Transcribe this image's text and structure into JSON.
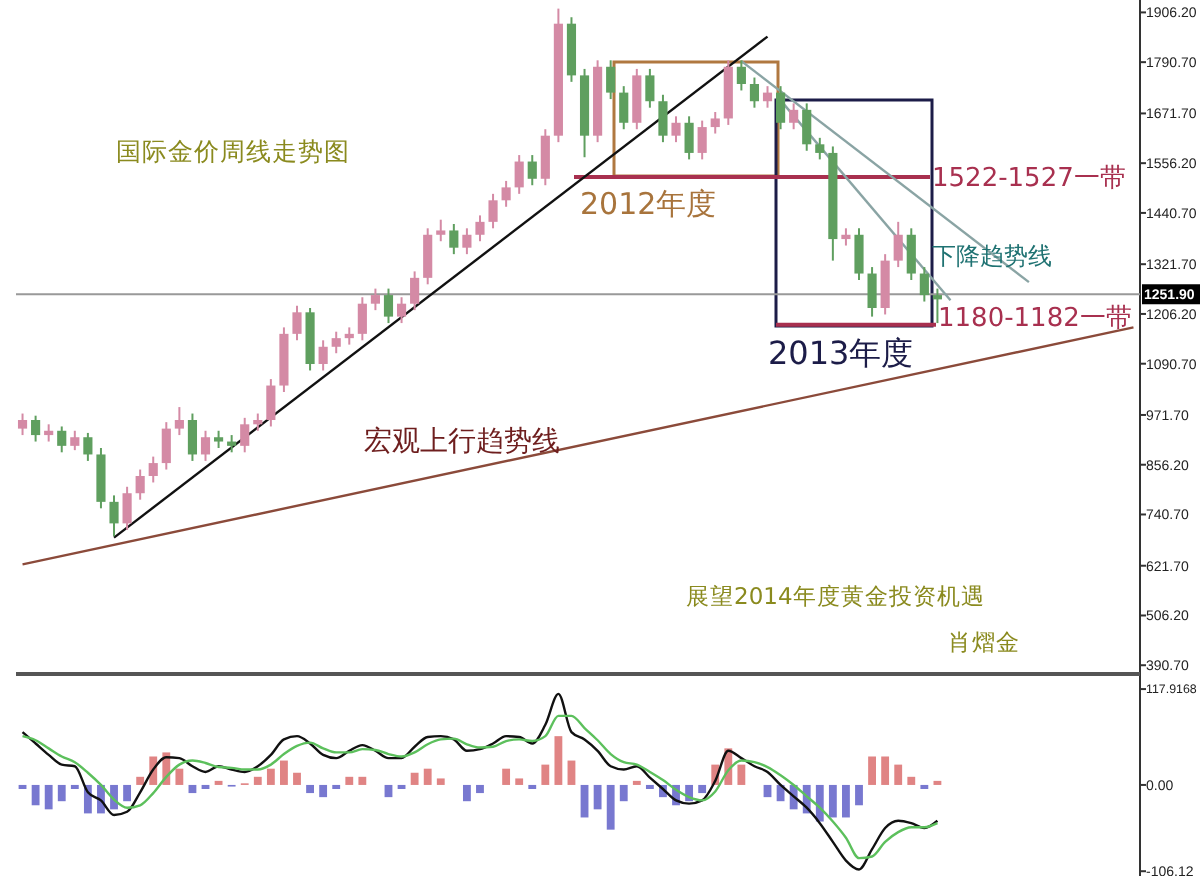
{
  "chart_data": [
    {
      "type": "candlestick",
      "title": "国际金价周线走势图",
      "grid": false,
      "categories": [
        null,
        null,
        null,
        null,
        null,
        null,
        null,
        null,
        null,
        null,
        null,
        null,
        null,
        null,
        null,
        null,
        null,
        null,
        null,
        null,
        null,
        null,
        null,
        null,
        null,
        null,
        null,
        null,
        null,
        null,
        null,
        null,
        null,
        null,
        null,
        null,
        null,
        null,
        null,
        null,
        null,
        null,
        null,
        null,
        null,
        null,
        null,
        null,
        null,
        null,
        null,
        null,
        null,
        null,
        null,
        null,
        null,
        null,
        null,
        null,
        null,
        null,
        null,
        null,
        null,
        null,
        null,
        null,
        null,
        null,
        null,
        null,
        null,
        null,
        null,
        null,
        null,
        null,
        null,
        null,
        null,
        null,
        null,
        null,
        null,
        null
      ],
      "ohlc": [
        [
          940,
          975,
          925,
          960
        ],
        [
          960,
          970,
          910,
          925
        ],
        [
          925,
          950,
          910,
          935
        ],
        [
          935,
          945,
          885,
          900
        ],
        [
          900,
          935,
          890,
          920
        ],
        [
          920,
          930,
          865,
          880
        ],
        [
          880,
          895,
          755,
          770
        ],
        [
          770,
          785,
          690,
          720
        ],
        [
          720,
          805,
          705,
          790
        ],
        [
          790,
          845,
          775,
          830
        ],
        [
          830,
          875,
          815,
          860
        ],
        [
          860,
          955,
          845,
          940
        ],
        [
          940,
          990,
          925,
          960
        ],
        [
          960,
          975,
          865,
          880
        ],
        [
          880,
          935,
          865,
          920
        ],
        [
          920,
          935,
          895,
          910
        ],
        [
          910,
          925,
          885,
          900
        ],
        [
          900,
          965,
          885,
          950
        ],
        [
          950,
          975,
          935,
          960
        ],
        [
          960,
          1055,
          945,
          1040
        ],
        [
          1040,
          1175,
          1025,
          1160
        ],
        [
          1160,
          1225,
          1145,
          1210
        ],
        [
          1210,
          1220,
          1075,
          1090
        ],
        [
          1090,
          1145,
          1075,
          1130
        ],
        [
          1130,
          1165,
          1115,
          1150
        ],
        [
          1150,
          1175,
          1135,
          1160
        ],
        [
          1160,
          1245,
          1145,
          1230
        ],
        [
          1230,
          1265,
          1215,
          1250
        ],
        [
          1250,
          1265,
          1185,
          1200
        ],
        [
          1200,
          1245,
          1185,
          1230
        ],
        [
          1230,
          1305,
          1215,
          1290
        ],
        [
          1290,
          1405,
          1275,
          1390
        ],
        [
          1390,
          1425,
          1375,
          1400
        ],
        [
          1400,
          1415,
          1345,
          1360
        ],
        [
          1360,
          1405,
          1345,
          1390
        ],
        [
          1390,
          1435,
          1375,
          1420
        ],
        [
          1420,
          1485,
          1405,
          1470
        ],
        [
          1470,
          1515,
          1455,
          1500
        ],
        [
          1500,
          1575,
          1485,
          1560
        ],
        [
          1560,
          1575,
          1505,
          1520
        ],
        [
          1520,
          1635,
          1505,
          1620
        ],
        [
          1620,
          1915,
          1605,
          1880
        ],
        [
          1880,
          1895,
          1745,
          1760
        ],
        [
          1760,
          1775,
          1570,
          1620
        ],
        [
          1620,
          1795,
          1605,
          1780
        ],
        [
          1780,
          1795,
          1705,
          1720
        ],
        [
          1720,
          1735,
          1635,
          1650
        ],
        [
          1650,
          1775,
          1635,
          1760
        ],
        [
          1760,
          1775,
          1685,
          1700
        ],
        [
          1700,
          1715,
          1605,
          1620
        ],
        [
          1620,
          1665,
          1605,
          1650
        ],
        [
          1650,
          1665,
          1565,
          1580
        ],
        [
          1580,
          1655,
          1565,
          1640
        ],
        [
          1640,
          1675,
          1625,
          1660
        ],
        [
          1660,
          1795,
          1645,
          1780
        ],
        [
          1780,
          1795,
          1725,
          1740
        ],
        [
          1740,
          1755,
          1685,
          1700
        ],
        [
          1700,
          1735,
          1685,
          1720
        ],
        [
          1720,
          1735,
          1635,
          1650
        ],
        [
          1650,
          1695,
          1635,
          1680
        ],
        [
          1680,
          1695,
          1585,
          1600
        ],
        [
          1600,
          1615,
          1565,
          1580
        ],
        [
          1580,
          1595,
          1330,
          1380
        ],
        [
          1380,
          1405,
          1365,
          1390
        ],
        [
          1390,
          1405,
          1285,
          1300
        ],
        [
          1300,
          1315,
          1200,
          1220
        ],
        [
          1220,
          1345,
          1205,
          1330
        ],
        [
          1330,
          1420,
          1315,
          1390
        ],
        [
          1390,
          1405,
          1285,
          1300
        ],
        [
          1300,
          1315,
          1235,
          1250
        ],
        [
          1250,
          1265,
          1185,
          1240
        ],
        null,
        null,
        null,
        null,
        null,
        null,
        null,
        null,
        null,
        null,
        null,
        null,
        null,
        null,
        null
      ],
      "colors": [
        "#d48aa5",
        "#5f9f5f",
        "#d48aa5",
        "#5f9f5f",
        "#d48aa5",
        "#5f9f5f",
        "#5f9f5f",
        "#5f9f5f",
        "#d48aa5",
        "#d48aa5",
        "#d48aa5",
        "#d48aa5",
        "#d48aa5",
        "#5f9f5f",
        "#d48aa5",
        "#5f9f5f",
        "#5f9f5f",
        "#d48aa5",
        "#d48aa5",
        "#d48aa5",
        "#d48aa5",
        "#d48aa5",
        "#5f9f5f",
        "#d48aa5",
        "#d48aa5",
        "#d48aa5",
        "#d48aa5",
        "#d48aa5",
        "#5f9f5f",
        "#d48aa5",
        "#d48aa5",
        "#d48aa5",
        "#d48aa5",
        "#5f9f5f",
        "#d48aa5",
        "#d48aa5",
        "#d48aa5",
        "#d48aa5",
        "#d48aa5",
        "#5f9f5f",
        "#d48aa5",
        "#d48aa5",
        "#5f9f5f",
        "#5f9f5f",
        "#d48aa5",
        "#5f9f5f",
        "#5f9f5f",
        "#d48aa5",
        "#5f9f5f",
        "#5f9f5f",
        "#d48aa5",
        "#5f9f5f",
        "#d48aa5",
        "#d48aa5",
        "#d48aa5",
        "#5f9f5f",
        "#5f9f5f",
        "#d48aa5",
        "#5f9f5f",
        "#d48aa5",
        "#5f9f5f",
        "#5f9f5f",
        "#5f9f5f",
        "#d48aa5",
        "#5f9f5f",
        "#5f9f5f",
        "#d48aa5",
        "#d48aa5",
        "#5f9f5f",
        "#5f9f5f",
        "#5f9f5f",
        null,
        null,
        null,
        null,
        null,
        null,
        null,
        null,
        null,
        null,
        null,
        null,
        null,
        null,
        null
      ],
      "series": [
        {
          "type": "line",
          "color": "#111111",
          "values": [
            null,
            null,
            null,
            null,
            null,
            null,
            null,
            687,
            null,
            null,
            null,
            null,
            null,
            null,
            null,
            null,
            null,
            null,
            null,
            null,
            null,
            null,
            null,
            null,
            null,
            null,
            null,
            null,
            null,
            null,
            null,
            null,
            null,
            null,
            null,
            null,
            null,
            null,
            null,
            null,
            null,
            null,
            null,
            null,
            null,
            null,
            null,
            null,
            null,
            null,
            null,
            null,
            null,
            null,
            null,
            null,
            null,
            1850,
            null,
            null,
            null,
            null,
            null,
            null,
            null,
            null,
            null,
            null,
            null,
            null,
            null,
            null,
            null,
            null,
            null,
            null,
            null,
            null,
            null,
            null,
            null,
            null,
            null,
            null,
            null,
            null
          ]
        },
        {
          "type": "line",
          "color": "#8b4a3a",
          "values": [
            625,
            null,
            null,
            null,
            null,
            null,
            null,
            null,
            null,
            null,
            null,
            null,
            null,
            null,
            null,
            null,
            null,
            null,
            null,
            null,
            null,
            null,
            null,
            null,
            null,
            null,
            null,
            null,
            null,
            null,
            null,
            null,
            null,
            null,
            null,
            null,
            null,
            null,
            null,
            null,
            null,
            null,
            null,
            null,
            null,
            null,
            null,
            null,
            null,
            null,
            null,
            null,
            null,
            null,
            null,
            null,
            null,
            null,
            null,
            null,
            null,
            null,
            null,
            null,
            null,
            null,
            null,
            null,
            null,
            null,
            null,
            null,
            null,
            null,
            null,
            null,
            null,
            null,
            null,
            null,
            null,
            null,
            null,
            null,
            null,
            1175
          ]
        },
        {
          "type": "line",
          "color": "#8aa4a4",
          "values": [
            null,
            null,
            null,
            null,
            null,
            null,
            null,
            null,
            null,
            null,
            null,
            null,
            null,
            null,
            null,
            null,
            null,
            null,
            null,
            null,
            null,
            null,
            null,
            null,
            null,
            null,
            null,
            null,
            null,
            null,
            null,
            null,
            null,
            null,
            null,
            null,
            null,
            null,
            null,
            null,
            null,
            null,
            null,
            null,
            null,
            null,
            null,
            null,
            null,
            null,
            null,
            null,
            null,
            null,
            null,
            1793,
            null,
            null,
            null,
            null,
            null,
            null,
            null,
            null,
            null,
            null,
            null,
            null,
            null,
            null,
            null,
            null,
            null,
            null,
            null,
            null,
            null,
            1280,
            null,
            null,
            null,
            null,
            null,
            null,
            null,
            null
          ]
        },
        {
          "type": "line",
          "color": "#8aa4a4",
          "values": [
            null,
            null,
            null,
            null,
            null,
            null,
            null,
            null,
            null,
            null,
            null,
            null,
            null,
            null,
            null,
            null,
            null,
            null,
            null,
            null,
            null,
            null,
            null,
            null,
            null,
            null,
            null,
            null,
            null,
            null,
            null,
            null,
            null,
            null,
            null,
            null,
            null,
            null,
            null,
            null,
            null,
            null,
            null,
            null,
            null,
            null,
            null,
            null,
            null,
            null,
            null,
            null,
            null,
            null,
            null,
            null,
            null,
            null,
            1702,
            null,
            null,
            null,
            null,
            null,
            null,
            null,
            null,
            null,
            null,
            null,
            null,
            1238,
            null,
            null,
            null,
            null,
            null,
            null,
            null,
            null,
            null,
            null,
            null,
            null,
            null,
            null
          ]
        }
      ],
      "ylim": [
        375,
        1935
      ],
      "yticks": [
        {
          "value": 1906.2,
          "label": "1906.20"
        },
        {
          "value": 1790.7,
          "label": "1790.70"
        },
        {
          "value": 1671.7,
          "label": "1671.70"
        },
        {
          "value": 1556.2,
          "label": "1556.20"
        },
        {
          "value": 1440.7,
          "label": "1440.70"
        },
        {
          "value": 1321.7,
          "label": "1321.70"
        },
        {
          "value": 1206.2,
          "label": "1206.20"
        },
        {
          "value": 1090.7,
          "label": "1090.70"
        },
        {
          "value": 971.7,
          "label": "971.70"
        },
        {
          "value": 856.2,
          "label": "856.20"
        },
        {
          "value": 740.7,
          "label": "740.70"
        },
        {
          "value": 621.7,
          "label": "621.70"
        },
        {
          "value": 506.2,
          "label": "506.20"
        },
        {
          "value": 390.7,
          "label": "390.70"
        }
      ],
      "ref_lines": [
        {
          "axis": "y",
          "value": 1251.9,
          "label": "1251.90",
          "color": "#999999"
        },
        {
          "axis": "y",
          "value": 1524,
          "label": "1522-1527一带",
          "color": "#a8304f"
        },
        {
          "axis": "y",
          "value": 1181,
          "label": "1180-1182一带",
          "color": "#a8304f"
        }
      ],
      "annotations": [
        "2012年度",
        "2013年度",
        "下降趋势线",
        "宏观上行趋势线",
        "展望2014年度黄金投资机遇",
        "肖熠金"
      ]
    },
    {
      "type": "bar",
      "grid": false,
      "categories": [
        null,
        null,
        null,
        null,
        null,
        null,
        null,
        null,
        null,
        null,
        null,
        null,
        null,
        null,
        null,
        null,
        null,
        null,
        null,
        null,
        null,
        null,
        null,
        null,
        null,
        null,
        null,
        null,
        null,
        null,
        null,
        null,
        null,
        null,
        null,
        null,
        null,
        null,
        null,
        null,
        null,
        null,
        null,
        null,
        null,
        null,
        null,
        null,
        null,
        null,
        null,
        null,
        null,
        null,
        null,
        null,
        null,
        null,
        null,
        null,
        null,
        null,
        null,
        null,
        null,
        null,
        null,
        null,
        null,
        null,
        null,
        null,
        null,
        null,
        null,
        null,
        null,
        null,
        null,
        null,
        null,
        null,
        null,
        null,
        null,
        null
      ],
      "ylim": [
        -112,
        134
      ],
      "yticks": [
        {
          "value": 117.9168,
          "label": "117.9168"
        },
        {
          "value": 0,
          "label": "0.00"
        },
        {
          "value": -106.12,
          "label": "-106.12"
        }
      ],
      "series": [
        {
          "type": "bar",
          "values": [
            -5,
            -25,
            -30,
            -20,
            -5,
            -35,
            -35,
            -30,
            -20,
            10,
            35,
            40,
            20,
            -10,
            -5,
            5,
            -2,
            2,
            10,
            20,
            30,
            15,
            -10,
            -15,
            -5,
            10,
            10,
            0,
            -15,
            -5,
            15,
            20,
            8,
            0,
            -20,
            -10,
            0,
            20,
            8,
            -5,
            25,
            60,
            30,
            -40,
            -30,
            -55,
            -20,
            5,
            -5,
            -15,
            -25,
            -20,
            -10,
            25,
            45,
            25,
            0,
            -15,
            -20,
            -30,
            -35,
            -45,
            -40,
            -40,
            -25,
            35,
            35,
            25,
            10,
            -5,
            5,
            null,
            null,
            null,
            null,
            null,
            null,
            null,
            null,
            null,
            null,
            null,
            null,
            null,
            null,
            null
          ],
          "colors": [
            "#7878d0",
            "#7878d0",
            "#7878d0",
            "#7878d0",
            "#7878d0",
            "#7878d0",
            "#7878d0",
            "#7878d0",
            "#7878d0",
            "#e08484",
            "#e08484",
            "#e08484",
            "#e08484",
            "#7878d0",
            "#7878d0",
            "#e08484",
            "#7878d0",
            "#e08484",
            "#e08484",
            "#e08484",
            "#e08484",
            "#e08484",
            "#7878d0",
            "#7878d0",
            "#7878d0",
            "#e08484",
            "#e08484",
            "#e08484",
            "#7878d0",
            "#7878d0",
            "#e08484",
            "#e08484",
            "#e08484",
            "#e08484",
            "#7878d0",
            "#7878d0",
            "#e08484",
            "#e08484",
            "#e08484",
            "#7878d0",
            "#e08484",
            "#e08484",
            "#e08484",
            "#7878d0",
            "#7878d0",
            "#7878d0",
            "#7878d0",
            "#e08484",
            "#7878d0",
            "#7878d0",
            "#7878d0",
            "#7878d0",
            "#7878d0",
            "#e08484",
            "#e08484",
            "#e08484",
            "#e08484",
            "#7878d0",
            "#7878d0",
            "#7878d0",
            "#7878d0",
            "#7878d0",
            "#7878d0",
            "#7878d0",
            "#7878d0",
            "#e08484",
            "#e08484",
            "#e08484",
            "#e08484",
            "#7878d0",
            "#e08484",
            null,
            null,
            null,
            null,
            null,
            null,
            null,
            null,
            null,
            null,
            null,
            null,
            null,
            null,
            null
          ]
        },
        {
          "type": "line",
          "color": "#111111",
          "values": [
            65,
            51,
            37,
            25,
            23,
            -9,
            -19,
            -37,
            -33,
            -9,
            19,
            34,
            33,
            23,
            16,
            23,
            19,
            16,
            23,
            37,
            56,
            60,
            51,
            37,
            33,
            42,
            49,
            42,
            33,
            33,
            47,
            59,
            60,
            56,
            42,
            44,
            51,
            60,
            59,
            51,
            74,
            112,
            65,
            56,
            42,
            23,
            19,
            23,
            9,
            -5,
            -19,
            -23,
            -19,
            5,
            42,
            33,
            23,
            16,
            0,
            -14,
            -28,
            -47,
            -70,
            -93,
            -104,
            -79,
            -53,
            -44,
            -47,
            -53,
            -44,
            null,
            null,
            null,
            null,
            null,
            null,
            null,
            null,
            null,
            null,
            null,
            null,
            null,
            null,
            null
          ]
        },
        {
          "type": "line",
          "color": "#5cc05c",
          "values": [
            60,
            55,
            45,
            35,
            28,
            15,
            0,
            -18,
            -28,
            -25,
            -10,
            10,
            25,
            30,
            27,
            22,
            21,
            19,
            19,
            25,
            38,
            48,
            52,
            45,
            40,
            40,
            44,
            43,
            38,
            35,
            40,
            50,
            56,
            57,
            50,
            46,
            47,
            54,
            56,
            54,
            60,
            85,
            85,
            70,
            55,
            38,
            28,
            25,
            16,
            6,
            -6,
            -15,
            -19,
            -8,
            18,
            30,
            28,
            22,
            12,
            0,
            -14,
            -28,
            -45,
            -65,
            -90,
            -88,
            -70,
            -58,
            -52,
            -52,
            -47,
            null,
            null,
            null,
            null,
            null,
            null,
            null,
            null,
            null,
            null,
            null,
            null,
            null,
            null,
            null
          ]
        }
      ]
    }
  ]
}
